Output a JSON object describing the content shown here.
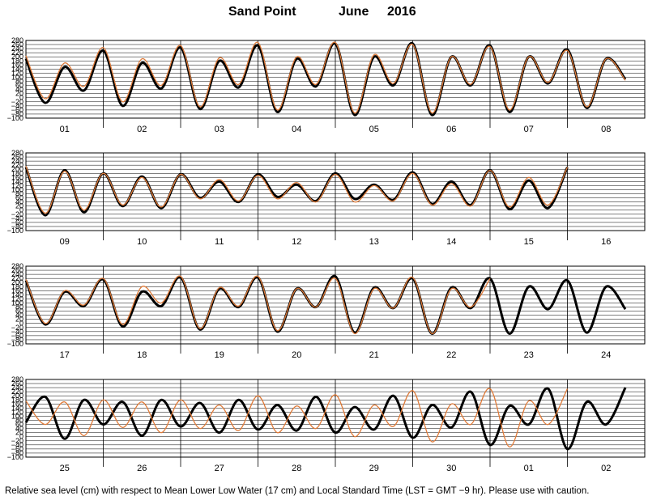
{
  "title": {
    "station": "Sand Point",
    "month": "June",
    "year": "2016"
  },
  "caption": "Relative sea level (cm) with respect to Mean Lower Low Water (17 cm) and Local Standard Time (LST = GMT −9 hr). Please use with caution.",
  "colors": {
    "predicted": "#000000",
    "observed": "#e07b39",
    "grid": "#000000"
  },
  "chart_data": {
    "type": "line",
    "ylim": [
      -100,
      280
    ],
    "yticks": [
      "280",
      "260",
      "240",
      "220",
      "200",
      "180",
      "160",
      "140",
      "120",
      "100",
      "80",
      "60",
      "40",
      "20",
      "0",
      "−20",
      "−40",
      "−60",
      "−80",
      "−100"
    ],
    "x_unit": "day",
    "panels": [
      {
        "days": [
          "01",
          "02",
          "03",
          "04",
          "05",
          "06",
          "07",
          "08"
        ],
        "series": [
          {
            "style": "predicted",
            "values": [
              190,
              -25,
              150,
              35,
              230,
              -40,
              170,
              45,
              245,
              -55,
              180,
              50,
              255,
              -70,
              190,
              55,
              265,
              -85,
              200,
              60,
              265,
              -85,
              200,
              60,
              255,
              -70,
              200,
              70,
              235,
              -50,
              190,
              90
            ]
          },
          {
            "style": "observed",
            "values": [
              205,
              -5,
              170,
              55,
              245,
              -20,
              190,
              60,
              255,
              -45,
              195,
              65,
              270,
              -60,
              200,
              65,
              270,
              -75,
              210,
              70,
              260,
              -75,
              200,
              65,
              250,
              -60,
              200,
              75,
              230,
              -45,
              190,
              85
            ]
          }
        ]
      },
      {
        "days": [
          "09",
          "10",
          "11",
          "12",
          "13",
          "14",
          "15",
          "16"
        ],
        "series": [
          {
            "style": "predicted",
            "values": [
              210,
              -25,
              195,
              -10,
              180,
              20,
              165,
              10,
              175,
              60,
              140,
              40,
              175,
              65,
              125,
              45,
              180,
              55,
              125,
              50,
              185,
              30,
              140,
              25,
              195,
              5,
              145,
              10,
              210
            ]
          },
          {
            "style": "observed",
            "values": [
              215,
              -15,
              190,
              0,
              180,
              25,
              160,
              15,
              175,
              55,
              150,
              45,
              170,
              55,
              135,
              40,
              175,
              40,
              120,
              45,
              180,
              25,
              130,
              20,
              195,
              15,
              160,
              25,
              210
            ]
          }
        ]
      },
      {
        "days": [
          "17",
          "18",
          "19",
          "20",
          "21",
          "22",
          "23",
          "24"
        ],
        "series": [
          {
            "style": "predicted",
            "values": [
              210,
              -5,
              155,
              85,
              215,
              -15,
              155,
              85,
              225,
              -30,
              170,
              80,
              225,
              -40,
              170,
              80,
              230,
              -45,
              175,
              75,
              220,
              -50,
              175,
              75,
              220,
              -50,
              180,
              70,
              210,
              -45,
              180,
              70
            ]
          },
          {
            "style": "observed",
            "values": [
              215,
              0,
              160,
              90,
              220,
              -5,
              180,
              100,
              230,
              -25,
              175,
              85,
              230,
              -35,
              170,
              80,
              220,
              -50,
              170,
              75,
              225,
              -50,
              170,
              80,
              220
            ]
          }
        ]
      },
      {
        "days": [
          "25",
          "26",
          "27",
          "28",
          "29",
          "30",
          "01",
          "02"
        ],
        "series": [
          {
            "style": "predicted",
            "values": [
              70,
              195,
              -10,
              180,
              60,
              170,
              5,
              180,
              50,
              165,
              20,
              180,
              35,
              155,
              30,
              195,
              20,
              145,
              35,
              200,
              -5,
              155,
              45,
              220,
              -40,
              150,
              60,
              235,
              -60,
              170,
              60,
              240
            ]
          },
          {
            "style": "observed",
            "values": [
              175,
              60,
              170,
              5,
              180,
              45,
              170,
              20,
              180,
              40,
              155,
              30,
              200,
              20,
              150,
              40,
              205,
              0,
              155,
              50,
              225,
              -25,
              160,
              60,
              235,
              -50,
              175,
              60,
              235
            ]
          }
        ]
      }
    ]
  }
}
